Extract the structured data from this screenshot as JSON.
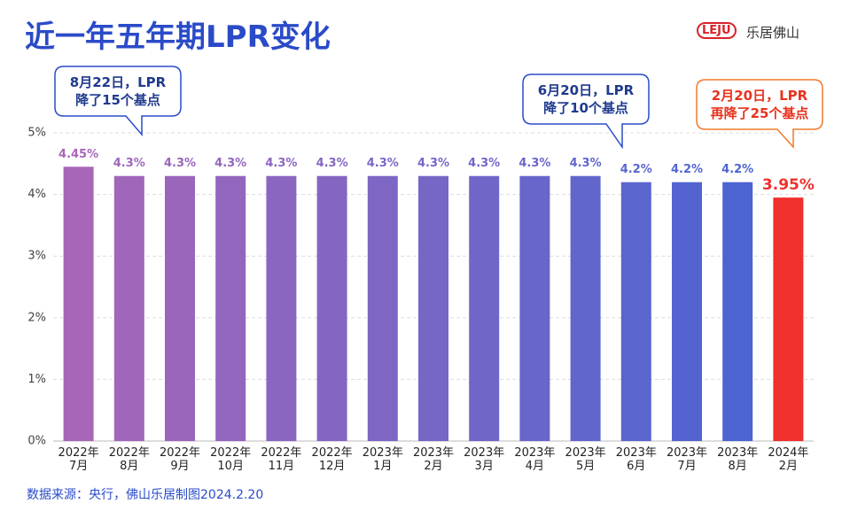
{
  "chart_data": {
    "type": "bar",
    "title": "近一年五年期LPR变化",
    "brand": "乐居佛山",
    "brand_mark": "LEJU",
    "source": "数据来源：央行，佛山乐居制图2024.2.20",
    "categories": [
      "2022年\n7月",
      "2022年\n8月",
      "2022年\n9月",
      "2022年\n10月",
      "2022年\n11月",
      "2022年\n12月",
      "2023年\n1月",
      "2023年\n2月",
      "2023年\n3月",
      "2023年\n4月",
      "2023年\n5月",
      "2023年\n6月",
      "2023年\n7月",
      "2023年\n8月",
      "2024年\n2月"
    ],
    "values": [
      4.45,
      4.3,
      4.3,
      4.3,
      4.3,
      4.3,
      4.3,
      4.3,
      4.3,
      4.3,
      4.3,
      4.2,
      4.2,
      4.2,
      3.95
    ],
    "value_labels": [
      "4.45%",
      "4.3%",
      "4.3%",
      "4.3%",
      "4.3%",
      "4.3%",
      "4.3%",
      "4.3%",
      "4.3%",
      "4.3%",
      "4.3%",
      "4.2%",
      "4.2%",
      "4.2%",
      "3.95%"
    ],
    "colors": [
      "#a866b8",
      "#a066ba",
      "#9966bc",
      "#9266be",
      "#8b66c0",
      "#8466c2",
      "#7d66c4",
      "#7666c6",
      "#6f66c8",
      "#6866ca",
      "#6166cc",
      "#5a65ce",
      "#5364d0",
      "#4c63d2",
      "#f0302c"
    ],
    "ylim": [
      0,
      5
    ],
    "yticks": [
      {
        "value": 0,
        "label": "0%"
      },
      {
        "value": 1,
        "label": "1%"
      },
      {
        "value": 2,
        "label": "2%"
      },
      {
        "value": 3,
        "label": "3%"
      },
      {
        "value": 4,
        "label": "4%"
      },
      {
        "value": 5,
        "label": "5%"
      }
    ],
    "grid": true,
    "annotations": [
      {
        "text": "8月22日，LPR\n降了15个基点",
        "color": "#1f3a8f",
        "border": "#2a4bc8"
      },
      {
        "text": "6月20日，LPR\n降了10个基点",
        "color": "#1f3a8f",
        "border": "#2a4bc8"
      },
      {
        "text": "2月20日，LPR\n再降了25个基点",
        "color": "#e8321e",
        "border": "#f07a2a"
      }
    ]
  }
}
